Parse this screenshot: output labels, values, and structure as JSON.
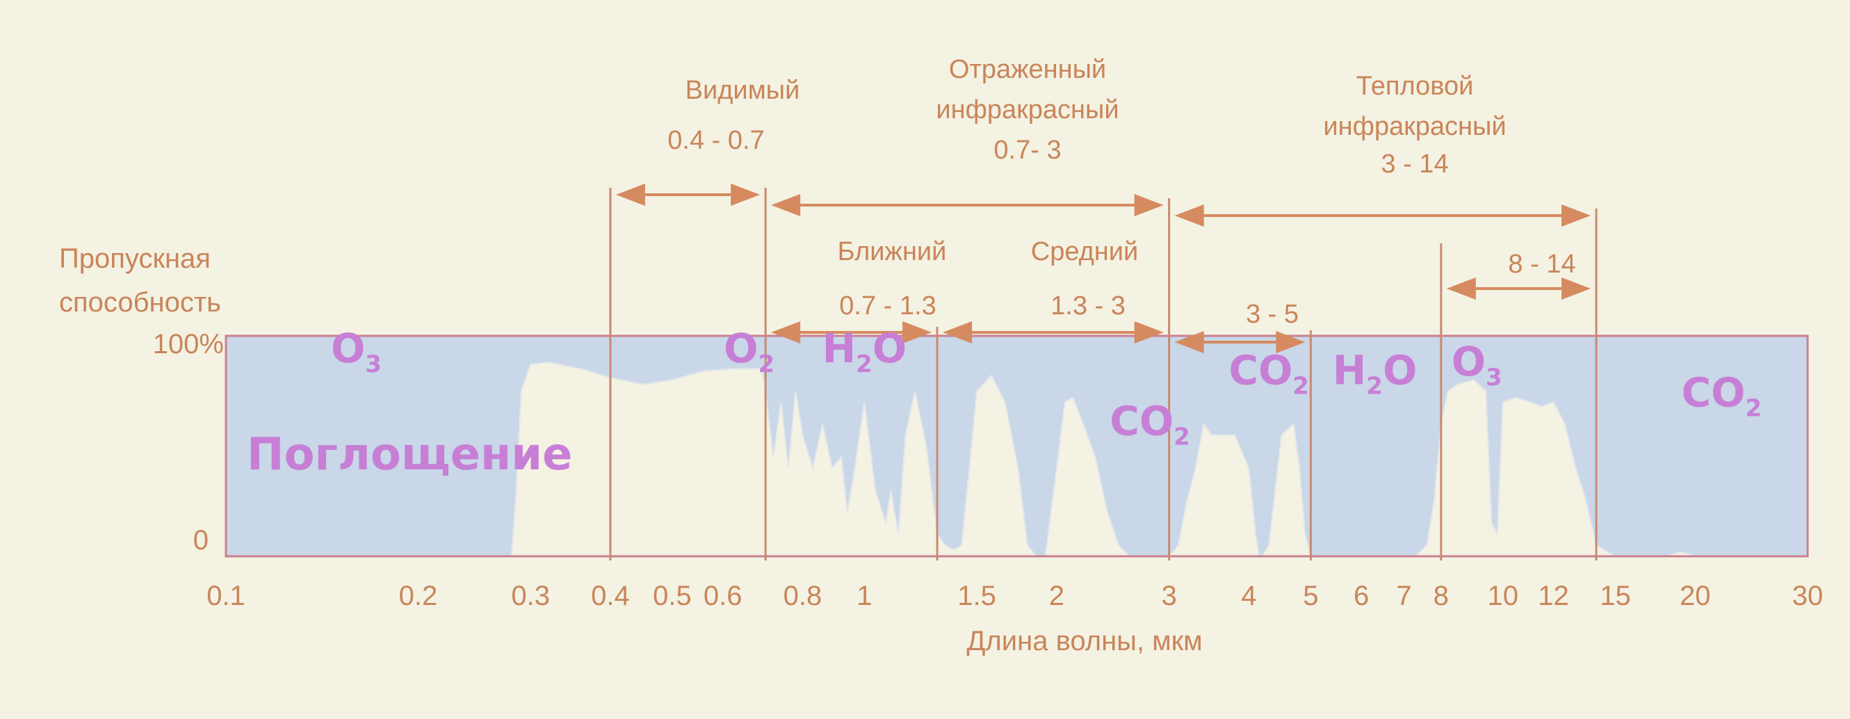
{
  "chart_data": {
    "type": "area",
    "ylabel": "Пропускная способность",
    "ylabel_lines": [
      "Пропускная",
      "способность"
    ],
    "y_tick_labels": [
      "100%",
      "0"
    ],
    "xlabel": "Длина волны, мкм",
    "x_scale": "log",
    "xlim": [
      0.1,
      30
    ],
    "ylim": [
      0,
      100
    ],
    "x_ticks": [
      {
        "label": "0.1",
        "value": 0.1
      },
      {
        "label": "0.2",
        "value": 0.2
      },
      {
        "label": "0.3",
        "value": 0.3
      },
      {
        "label": "0.4",
        "value": 0.4
      },
      {
        "label": "0.5",
        "value": 0.5
      },
      {
        "label": "0.6",
        "value": 0.6
      },
      {
        "label": "0.8",
        "value": 0.8
      },
      {
        "label": "1",
        "value": 1
      },
      {
        "label": "1.5",
        "value": 1.5
      },
      {
        "label": "2",
        "value": 2
      },
      {
        "label": "3",
        "value": 3
      },
      {
        "label": "4",
        "value": 4
      },
      {
        "label": "5",
        "value": 5
      },
      {
        "label": "6",
        "value": 6
      },
      {
        "label": "7",
        "value": 7
      },
      {
        "label": "8",
        "value": 8
      },
      {
        "label": "10",
        "value": 10
      },
      {
        "label": "12",
        "value": 12
      },
      {
        "label": "15",
        "value": 15
      },
      {
        "label": "20",
        "value": 20
      },
      {
        "label": "30",
        "value": 30
      }
    ],
    "transmission": {
      "x": [
        0.1,
        0.28,
        0.285,
        0.29,
        0.3,
        0.32,
        0.36,
        0.4,
        0.45,
        0.5,
        0.56,
        0.62,
        0.69,
        0.7,
        0.72,
        0.74,
        0.76,
        0.78,
        0.8,
        0.83,
        0.86,
        0.89,
        0.92,
        0.94,
        0.96,
        1.0,
        1.04,
        1.08,
        1.1,
        1.13,
        1.16,
        1.2,
        1.25,
        1.3,
        1.34,
        1.38,
        1.42,
        1.5,
        1.58,
        1.66,
        1.74,
        1.8,
        1.86,
        1.92,
        2.0,
        2.06,
        2.12,
        2.2,
        2.3,
        2.4,
        2.5,
        2.6,
        2.7,
        2.8,
        2.9,
        3.0,
        3.1,
        3.2,
        3.3,
        3.4,
        3.5,
        3.6,
        3.8,
        4.0,
        4.1,
        4.15,
        4.2,
        4.3,
        4.5,
        4.7,
        4.8,
        4.9,
        5.0,
        5.5,
        6.5,
        7.3,
        7.6,
        7.8,
        8.0,
        8.2,
        8.5,
        9.0,
        9.4,
        9.6,
        9.8,
        10.0,
        10.5,
        11.0,
        11.5,
        12.0,
        12.5,
        13.0,
        13.5,
        14.0,
        15.0,
        17.0,
        18.0,
        19.0,
        20.0,
        22.0,
        30.0
      ],
      "y": [
        0,
        0,
        30,
        75,
        87,
        88,
        85,
        81,
        78,
        80,
        84,
        85,
        85,
        75,
        45,
        70,
        40,
        75,
        55,
        40,
        60,
        40,
        45,
        20,
        35,
        70,
        30,
        15,
        30,
        10,
        55,
        75,
        50,
        10,
        5,
        3,
        5,
        75,
        82,
        70,
        40,
        5,
        0,
        0,
        40,
        70,
        72,
        60,
        45,
        20,
        5,
        0,
        0,
        0,
        0,
        0,
        5,
        25,
        40,
        60,
        55,
        55,
        55,
        40,
        10,
        0,
        0,
        5,
        55,
        60,
        40,
        10,
        0,
        0,
        0,
        0,
        5,
        25,
        60,
        75,
        78,
        80,
        75,
        15,
        10,
        70,
        72,
        70,
        68,
        70,
        60,
        40,
        25,
        5,
        0,
        0,
        0,
        2,
        0,
        0,
        0
      ]
    },
    "bands": [
      {
        "name": "Видимый",
        "range_text": "0.4 - 0.7",
        "from": 0.4,
        "to": 0.7
      },
      {
        "name": "Отраженный инфракрасный",
        "name_lines": [
          "Отраженный",
          "инфракрасный"
        ],
        "range_text": "0.7- 3",
        "from": 0.7,
        "to": 3
      },
      {
        "name": "Тепловой инфракрасный",
        "name_lines": [
          "Тепловой",
          "инфракрасный"
        ],
        "range_text": "3 - 14",
        "from": 3,
        "to": 14
      },
      {
        "name": "Ближний",
        "range_text": "0.7 - 1.3",
        "from": 0.7,
        "to": 1.3
      },
      {
        "name": "Средний",
        "range_text": "1.3 - 3",
        "from": 1.3,
        "to": 3
      },
      {
        "name": "",
        "range_text": "3 - 5",
        "from": 3,
        "to": 5
      },
      {
        "name": "",
        "range_text": "8 - 14",
        "from": 8,
        "to": 14
      }
    ],
    "band_boundaries": [
      0.4,
      0.7,
      1.3,
      3,
      5,
      8,
      14
    ],
    "absorption_label": "Поглощение",
    "gas_labels": [
      {
        "name": "O",
        "sub": "3",
        "x": 0.16,
        "y": 88
      },
      {
        "name": "O",
        "sub": "2",
        "x": 0.66,
        "y": 88
      },
      {
        "name": "H",
        "sub": "2",
        "tail": "O",
        "x": 1.0,
        "y": 88
      },
      {
        "name": "CO",
        "sub": "2",
        "x": 2.8,
        "y": 55
      },
      {
        "name": "CO",
        "sub": "2",
        "x": 4.3,
        "y": 78
      },
      {
        "name": "H",
        "sub": "2",
        "tail": "O",
        "x": 6.3,
        "y": 78
      },
      {
        "name": "O",
        "sub": "3",
        "x": 9.1,
        "y": 82
      },
      {
        "name": "CO",
        "sub": "2",
        "x": 22.0,
        "y": 68
      }
    ],
    "colors": {
      "background": "#f4f2e2",
      "absorption_fill": "#c9d7e8",
      "frame": "#c97f8f",
      "label_text": "#c9855a",
      "gas_text": "#c77fd6",
      "absorption_text": "#c070cc",
      "arrow": "#d68a60"
    }
  }
}
